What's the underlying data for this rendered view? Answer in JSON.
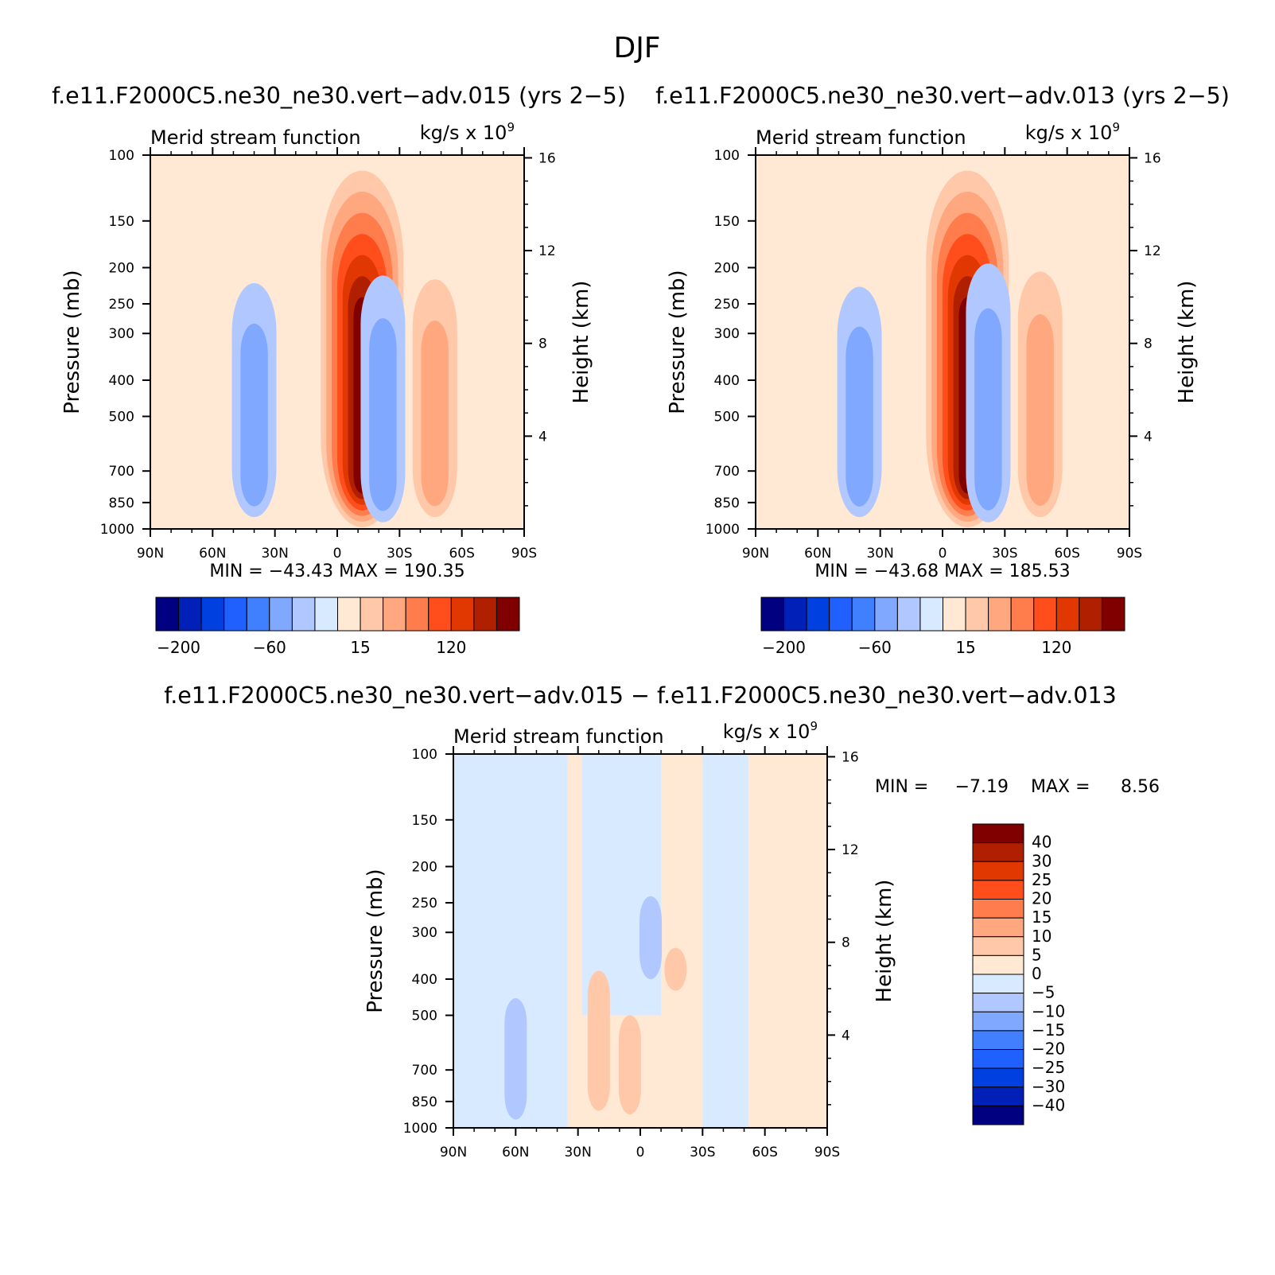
{
  "figure": {
    "title": "DJF"
  },
  "colors": {
    "palette": [
      "#000080",
      "#0020b8",
      "#0040e0",
      "#2060ff",
      "#4080ff",
      "#80a8ff",
      "#b0c8ff",
      "#d8eaff",
      "#ffe8d4",
      "#ffc8a8",
      "#ffa880",
      "#ff7c4c",
      "#ff4e1c",
      "#e03800",
      "#b02000",
      "#800000"
    ],
    "diff_palette": [
      "#000080",
      "#0020b8",
      "#0040e0",
      "#2060ff",
      "#4080ff",
      "#80a8ff",
      "#b0c8ff",
      "#d8eaff",
      "#ffe8d4",
      "#ffc8a8",
      "#ffa880",
      "#ff7c4c",
      "#ff4e1c",
      "#e03800",
      "#b02000",
      "#800000"
    ]
  },
  "chart_data": [
    {
      "type": "heatmap",
      "panel_title": "f.e11.F2000C5.ne30_ne30.vert−adv.015 (yrs 2−5)",
      "left_string": "Merid stream function",
      "units_base": "kg/s x 10",
      "units_exp": "9",
      "ylabel": "Pressure (mb)",
      "ylabel_right": "Height (km)",
      "x_ticks": [
        "90N",
        "60N",
        "30N",
        "0",
        "30S",
        "60S",
        "90S"
      ],
      "x_values": [
        90,
        60,
        30,
        0,
        -30,
        -60,
        -90
      ],
      "y_ticks": [
        "100",
        "150",
        "200",
        "250",
        "300",
        "400",
        "500",
        "700",
        "850",
        "1000"
      ],
      "y_values": [
        100,
        150,
        200,
        250,
        300,
        400,
        500,
        700,
        850,
        1000
      ],
      "right_ticks": [
        "16",
        "12",
        "8",
        "4"
      ],
      "right_values": [
        16,
        12,
        8,
        4
      ],
      "min_label": "MIN = −43.43",
      "max_label": "MAX = 190.35",
      "colorbar_labels": [
        "−200",
        "−60",
        "15",
        "120"
      ],
      "colorbar_levels": [
        -200,
        -60,
        15,
        120
      ],
      "features": [
        {
          "lat": -12,
          "p_top": 110,
          "p_bot": 990,
          "value": 190
        },
        {
          "lat": 40,
          "p_top": 220,
          "p_bot": 930,
          "value": -43
        },
        {
          "lat": -22,
          "p_top": 210,
          "p_bot": 960,
          "value": -40
        },
        {
          "lat": -47,
          "p_top": 215,
          "p_bot": 930,
          "value": 35
        },
        {
          "lat": 52,
          "p_top": 100,
          "p_bot": 980,
          "value": -5
        },
        {
          "lat": 78,
          "p_top": 100,
          "p_bot": 1000,
          "value": -5
        }
      ]
    },
    {
      "type": "heatmap",
      "panel_title": "f.e11.F2000C5.ne30_ne30.vert−adv.013 (yrs 2−5)",
      "left_string": "Merid stream function",
      "units_base": "kg/s x 10",
      "units_exp": "9",
      "ylabel": "Pressure (mb)",
      "ylabel_right": "Height (km)",
      "x_ticks": [
        "90N",
        "60N",
        "30N",
        "0",
        "30S",
        "60S",
        "90S"
      ],
      "x_values": [
        90,
        60,
        30,
        0,
        -30,
        -60,
        -90
      ],
      "y_ticks": [
        "100",
        "150",
        "200",
        "250",
        "300",
        "400",
        "500",
        "700",
        "850",
        "1000"
      ],
      "y_values": [
        100,
        150,
        200,
        250,
        300,
        400,
        500,
        700,
        850,
        1000
      ],
      "right_ticks": [
        "16",
        "12",
        "8",
        "4"
      ],
      "right_values": [
        16,
        12,
        8,
        4
      ],
      "min_label": "MIN = −43.68",
      "max_label": "MAX = 185.53",
      "colorbar_labels": [
        "−200",
        "−60",
        "15",
        "120"
      ],
      "colorbar_levels": [
        -200,
        -60,
        15,
        120
      ],
      "features": [
        {
          "lat": -12,
          "p_top": 110,
          "p_bot": 990,
          "value": 186
        },
        {
          "lat": 40,
          "p_top": 225,
          "p_bot": 930,
          "value": -44
        },
        {
          "lat": -22,
          "p_top": 195,
          "p_bot": 960,
          "value": -40
        },
        {
          "lat": -47,
          "p_top": 205,
          "p_bot": 930,
          "value": 35
        },
        {
          "lat": 52,
          "p_top": 100,
          "p_bot": 980,
          "value": -5
        },
        {
          "lat": 78,
          "p_top": 100,
          "p_bot": 1000,
          "value": -5
        }
      ]
    },
    {
      "type": "heatmap",
      "panel_title": "f.e11.F2000C5.ne30_ne30.vert−adv.015 − f.e11.F2000C5.ne30_ne30.vert−adv.013",
      "left_string": "Merid stream function",
      "units_base": "kg/s x 10",
      "units_exp": "9",
      "ylabel": "Pressure (mb)",
      "ylabel_right": "Height (km)",
      "x_ticks": [
        "90N",
        "60N",
        "30N",
        "0",
        "30S",
        "60S",
        "90S"
      ],
      "x_values": [
        90,
        60,
        30,
        0,
        -30,
        -60,
        -90
      ],
      "y_ticks": [
        "100",
        "150",
        "200",
        "250",
        "300",
        "400",
        "500",
        "700",
        "850",
        "1000"
      ],
      "y_values": [
        100,
        150,
        200,
        250,
        300,
        400,
        500,
        700,
        850,
        1000
      ],
      "right_ticks": [
        "16",
        "12",
        "8",
        "4"
      ],
      "right_values": [
        16,
        12,
        8,
        4
      ],
      "min_label": "MIN =",
      "min_value": "−7.19",
      "max_label": "MAX =",
      "max_value": "8.56",
      "colorbar_labels": [
        "40",
        "30",
        "25",
        "20",
        "15",
        "10",
        "5",
        "0",
        "−5",
        "−10",
        "−15",
        "−20",
        "−25",
        "−30",
        "−40"
      ],
      "colorbar_levels": [
        40,
        30,
        25,
        20,
        15,
        10,
        5,
        0,
        -5,
        -10,
        -15,
        -20,
        -25,
        -30,
        -40
      ],
      "features": [
        {
          "lat": 60,
          "p_top": 450,
          "p_bot": 950,
          "value": -7
        },
        {
          "lat": -5,
          "p_top": 240,
          "p_bot": 400,
          "value": -6
        },
        {
          "lat": 20,
          "p_top": 380,
          "p_bot": 900,
          "value": 6
        },
        {
          "lat": 5,
          "p_top": 500,
          "p_bot": 920,
          "value": 6
        },
        {
          "lat": -17,
          "p_top": 330,
          "p_bot": 430,
          "value": 6
        }
      ]
    }
  ]
}
